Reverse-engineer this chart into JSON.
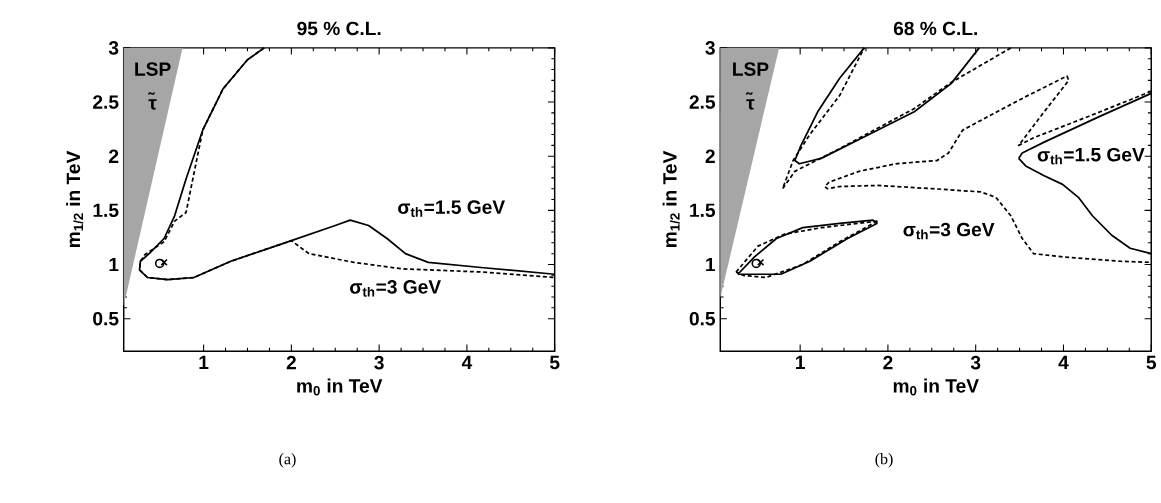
{
  "chart_data": [
    {
      "type": "line",
      "title": "95 % C.L.",
      "xlabel": "m$_{0}$ in TeV",
      "ylabel": "m$_{1/2}$ in TeV",
      "xlim": [
        0.09,
        5
      ],
      "ylim": [
        0.2,
        3
      ],
      "xticks": [
        1,
        2,
        3,
        4,
        5
      ],
      "yticks": [
        0.5,
        1,
        1.5,
        2,
        2.5,
        3
      ],
      "grid": false,
      "series": [
        {
          "type": "area",
          "color": "#a6a6a6",
          "x": [
            0.09,
            0.76,
            0.09
          ],
          "values": [
            0.62,
            3,
            3
          ]
        },
        {
          "line_style": "dashed",
          "color": "#000000",
          "x": [
            1.69,
            1.5,
            1.22,
            0.99,
            0.8,
            0.67,
            0.55,
            0.33,
            0.28,
            0.27,
            0.36,
            0.59,
            0.89,
            1.31,
            2.0,
            2.2,
            2.71,
            3.26,
            4.19,
            5.0
          ],
          "values": [
            3,
            2.89,
            2.62,
            2.24,
            1.48,
            1.4,
            1.21,
            1.09,
            1.03,
            0.95,
            0.88,
            0.86,
            0.88,
            1.03,
            1.22,
            1.1,
            1.02,
            0.96,
            0.93,
            0.88
          ]
        },
        {
          "line_style": "solid",
          "color": "#000000",
          "x": [
            1.69,
            1.5,
            1.22,
            0.99,
            0.8,
            0.67,
            0.55,
            0.38,
            0.28,
            0.27,
            0.36,
            0.59,
            0.89,
            1.31,
            2.0,
            2.5,
            2.67,
            2.88,
            3.09,
            3.3,
            3.56,
            4.19,
            5.0
          ],
          "values": [
            3,
            2.89,
            2.62,
            2.24,
            1.79,
            1.45,
            1.24,
            1.1,
            1.03,
            0.95,
            0.88,
            0.86,
            0.88,
            1.03,
            1.22,
            1.36,
            1.41,
            1.36,
            1.24,
            1.1,
            1.02,
            0.97,
            0.91
          ]
        },
        {
          "type": "scatter",
          "marker": "circle",
          "color": "#000000",
          "x": [
            0.5
          ],
          "values": [
            1.01
          ]
        },
        {
          "type": "scatter",
          "marker": "cross",
          "color": "#000000",
          "x": [
            0.55
          ],
          "values": [
            1.02
          ]
        }
      ],
      "annotations": [
        "LSP",
        "τ̃",
        "σ$_{th}$=1.5 GeV",
        "σ$_{th}$=3 GeV",
        "(a)"
      ]
    },
    {
      "type": "line",
      "title": "68 % C.L.",
      "xlabel": "m$_{0}$ in TeV",
      "ylabel": "m$_{1/2}$ in TeV",
      "xlim": [
        0.09,
        5
      ],
      "ylim": [
        0.2,
        3
      ],
      "xticks": [
        1,
        2,
        3,
        4,
        5
      ],
      "yticks": [
        0.5,
        1,
        1.5,
        2,
        2.5,
        3
      ],
      "grid": false,
      "series": [
        {
          "type": "area",
          "color": "#a6a6a6",
          "x": [
            0.09,
            0.76,
            0.09
          ],
          "values": [
            0.69,
            3,
            3
          ]
        },
        {
          "line_style": "dashed",
          "color": "#000000",
          "x": [
            3.4,
            2.72,
            2.3,
            1.45,
            0.94,
            0.8,
            0.92,
            1.11,
            1.45,
            1.73
          ],
          "values": [
            3,
            2.68,
            2.44,
            2.07,
            1.86,
            1.7,
            1.96,
            2.2,
            2.56,
            3
          ]
        },
        {
          "line_style": "dashed",
          "color": "#000000",
          "x": [
            5.0,
            4.42,
            3.66,
            3.49,
            3.78,
            4.06,
            4.04,
            3.57,
            3.15,
            2.85,
            2.69,
            2.56,
            2.09,
            1.67,
            1.33,
            1.28,
            1.31,
            1.45,
            1.88,
            2.51,
            3.06,
            3.23,
            3.4,
            3.53,
            3.66,
            3.99,
            4.64,
            5.0
          ],
          "values": [
            2.6,
            2.41,
            2.17,
            2.1,
            2.41,
            2.7,
            2.74,
            2.55,
            2.37,
            2.24,
            2.03,
            1.96,
            1.93,
            1.86,
            1.76,
            1.72,
            1.7,
            1.72,
            1.73,
            1.7,
            1.67,
            1.62,
            1.45,
            1.24,
            1.1,
            1.07,
            1.03,
            1.02
          ]
        },
        {
          "line_style": "dashed",
          "color": "#000000",
          "x": [
            0.27,
            0.52,
            0.82,
            1.24,
            1.88
          ],
          "values": [
            0.93,
            1.17,
            1.28,
            1.34,
            1.4
          ]
        },
        {
          "line_style": "dashed",
          "color": "#000000",
          "x": [
            1.88,
            1.45,
            1.03,
            0.61,
            0.35,
            0.27
          ],
          "values": [
            1.4,
            1.21,
            1.0,
            0.88,
            0.9,
            0.93
          ]
        },
        {
          "line_style": "solid",
          "color": "#000000",
          "x": [
            1.73,
            1.45,
            1.2,
            1.01,
            0.94,
            0.99,
            1.24,
            1.71,
            2.3,
            2.72,
            3.04
          ],
          "values": [
            3,
            2.72,
            2.41,
            2.1,
            1.96,
            1.93,
            1.98,
            2.17,
            2.41,
            2.67,
            3
          ]
        },
        {
          "line_style": "solid",
          "color": "#000000",
          "x": [
            0.29,
            0.48,
            0.73,
            1.03,
            1.45,
            1.83,
            1.88
          ],
          "values": [
            0.91,
            1.07,
            1.24,
            1.34,
            1.38,
            1.41,
            1.38
          ]
        },
        {
          "line_style": "solid",
          "color": "#000000",
          "x": [
            1.88,
            1.54,
            1.11,
            0.78,
            0.44,
            0.29
          ],
          "values": [
            1.38,
            1.24,
            1.03,
            0.91,
            0.91,
            0.91
          ]
        },
        {
          "line_style": "solid",
          "color": "#000000",
          "x": [
            5.0,
            4.42,
            3.78,
            3.53,
            3.49
          ],
          "values": [
            2.58,
            2.37,
            2.13,
            2.03,
            1.98
          ]
        },
        {
          "line_style": "solid",
          "color": "#000000",
          "x": [
            3.49,
            3.57,
            3.78,
            3.99,
            4.17,
            4.33,
            4.55,
            4.76,
            5.0
          ],
          "values": [
            1.98,
            1.91,
            1.82,
            1.74,
            1.62,
            1.45,
            1.27,
            1.15,
            1.1
          ]
        },
        {
          "type": "scatter",
          "marker": "circle",
          "color": "#000000",
          "x": [
            0.5
          ],
          "values": [
            1.01
          ]
        },
        {
          "type": "scatter",
          "marker": "cross",
          "color": "#000000",
          "x": [
            0.55
          ],
          "values": [
            1.02
          ]
        }
      ],
      "annotations": [
        "LSP",
        "τ̃",
        "σ$_{th}$=1.5 GeV",
        "σ$_{th}$=3 GeV",
        "(b)"
      ]
    }
  ]
}
